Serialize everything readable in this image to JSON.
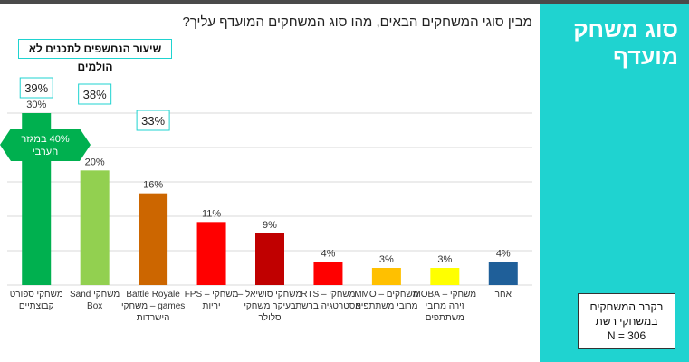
{
  "side_title": "סוג משחק מועדף",
  "sample_box": {
    "line1": "בקרב המשחקים",
    "line2": "במשחקי רשת",
    "line3": "N = 306"
  },
  "question": "מבין סוגי המשחקים הבאים, מהו סוג המשחקים המועדף עליך?",
  "legend_label": "שיעור הנחשפים לתכנים לא הולמים",
  "callout": {
    "line1": "40% במגזר",
    "line2": "הערבי"
  },
  "colors": {
    "accent": "#1fd3d0",
    "callout": "#00b04f"
  },
  "chart_data": {
    "type": "bar",
    "title": "",
    "xlabel": "",
    "ylabel": "",
    "ylim": [
      0,
      32
    ],
    "grid": true,
    "categories": [
      [
        "משחקי ספורט",
        "קבוצתיים"
      ],
      [
        "משחקי Sand",
        "Box"
      ],
      [
        "Battle Royale",
        "games – משחקי",
        "הישרדות"
      ],
      [
        "משחקי – FPS",
        "יריות"
      ],
      [
        "משחקי סושיאל –",
        "בעיקר משחקי",
        "סלולר"
      ],
      [
        "משחקי – RTS",
        "אסטרטגיה ברשת"
      ],
      [
        "משחקים – MMO",
        "מרובי משתתפים"
      ],
      [
        "משחקי – MOBA",
        "זירה מרובי",
        "משתתפים"
      ],
      [
        "אחר"
      ]
    ],
    "values": [
      30,
      20,
      16,
      11,
      9,
      4,
      3,
      3,
      4
    ],
    "value_labels": [
      "30%",
      "20%",
      "16%",
      "11%",
      "9%",
      "4%",
      "3%",
      "3%",
      "4%"
    ],
    "bar_colors": [
      "#00b04f",
      "#92d050",
      "#cc6600",
      "#ff0000",
      "#c00000",
      "#ff0000",
      "#ffc000",
      "#ffff00",
      "#1f5f99"
    ],
    "exposure_labels": [
      "39%",
      "38%",
      "33%"
    ]
  }
}
